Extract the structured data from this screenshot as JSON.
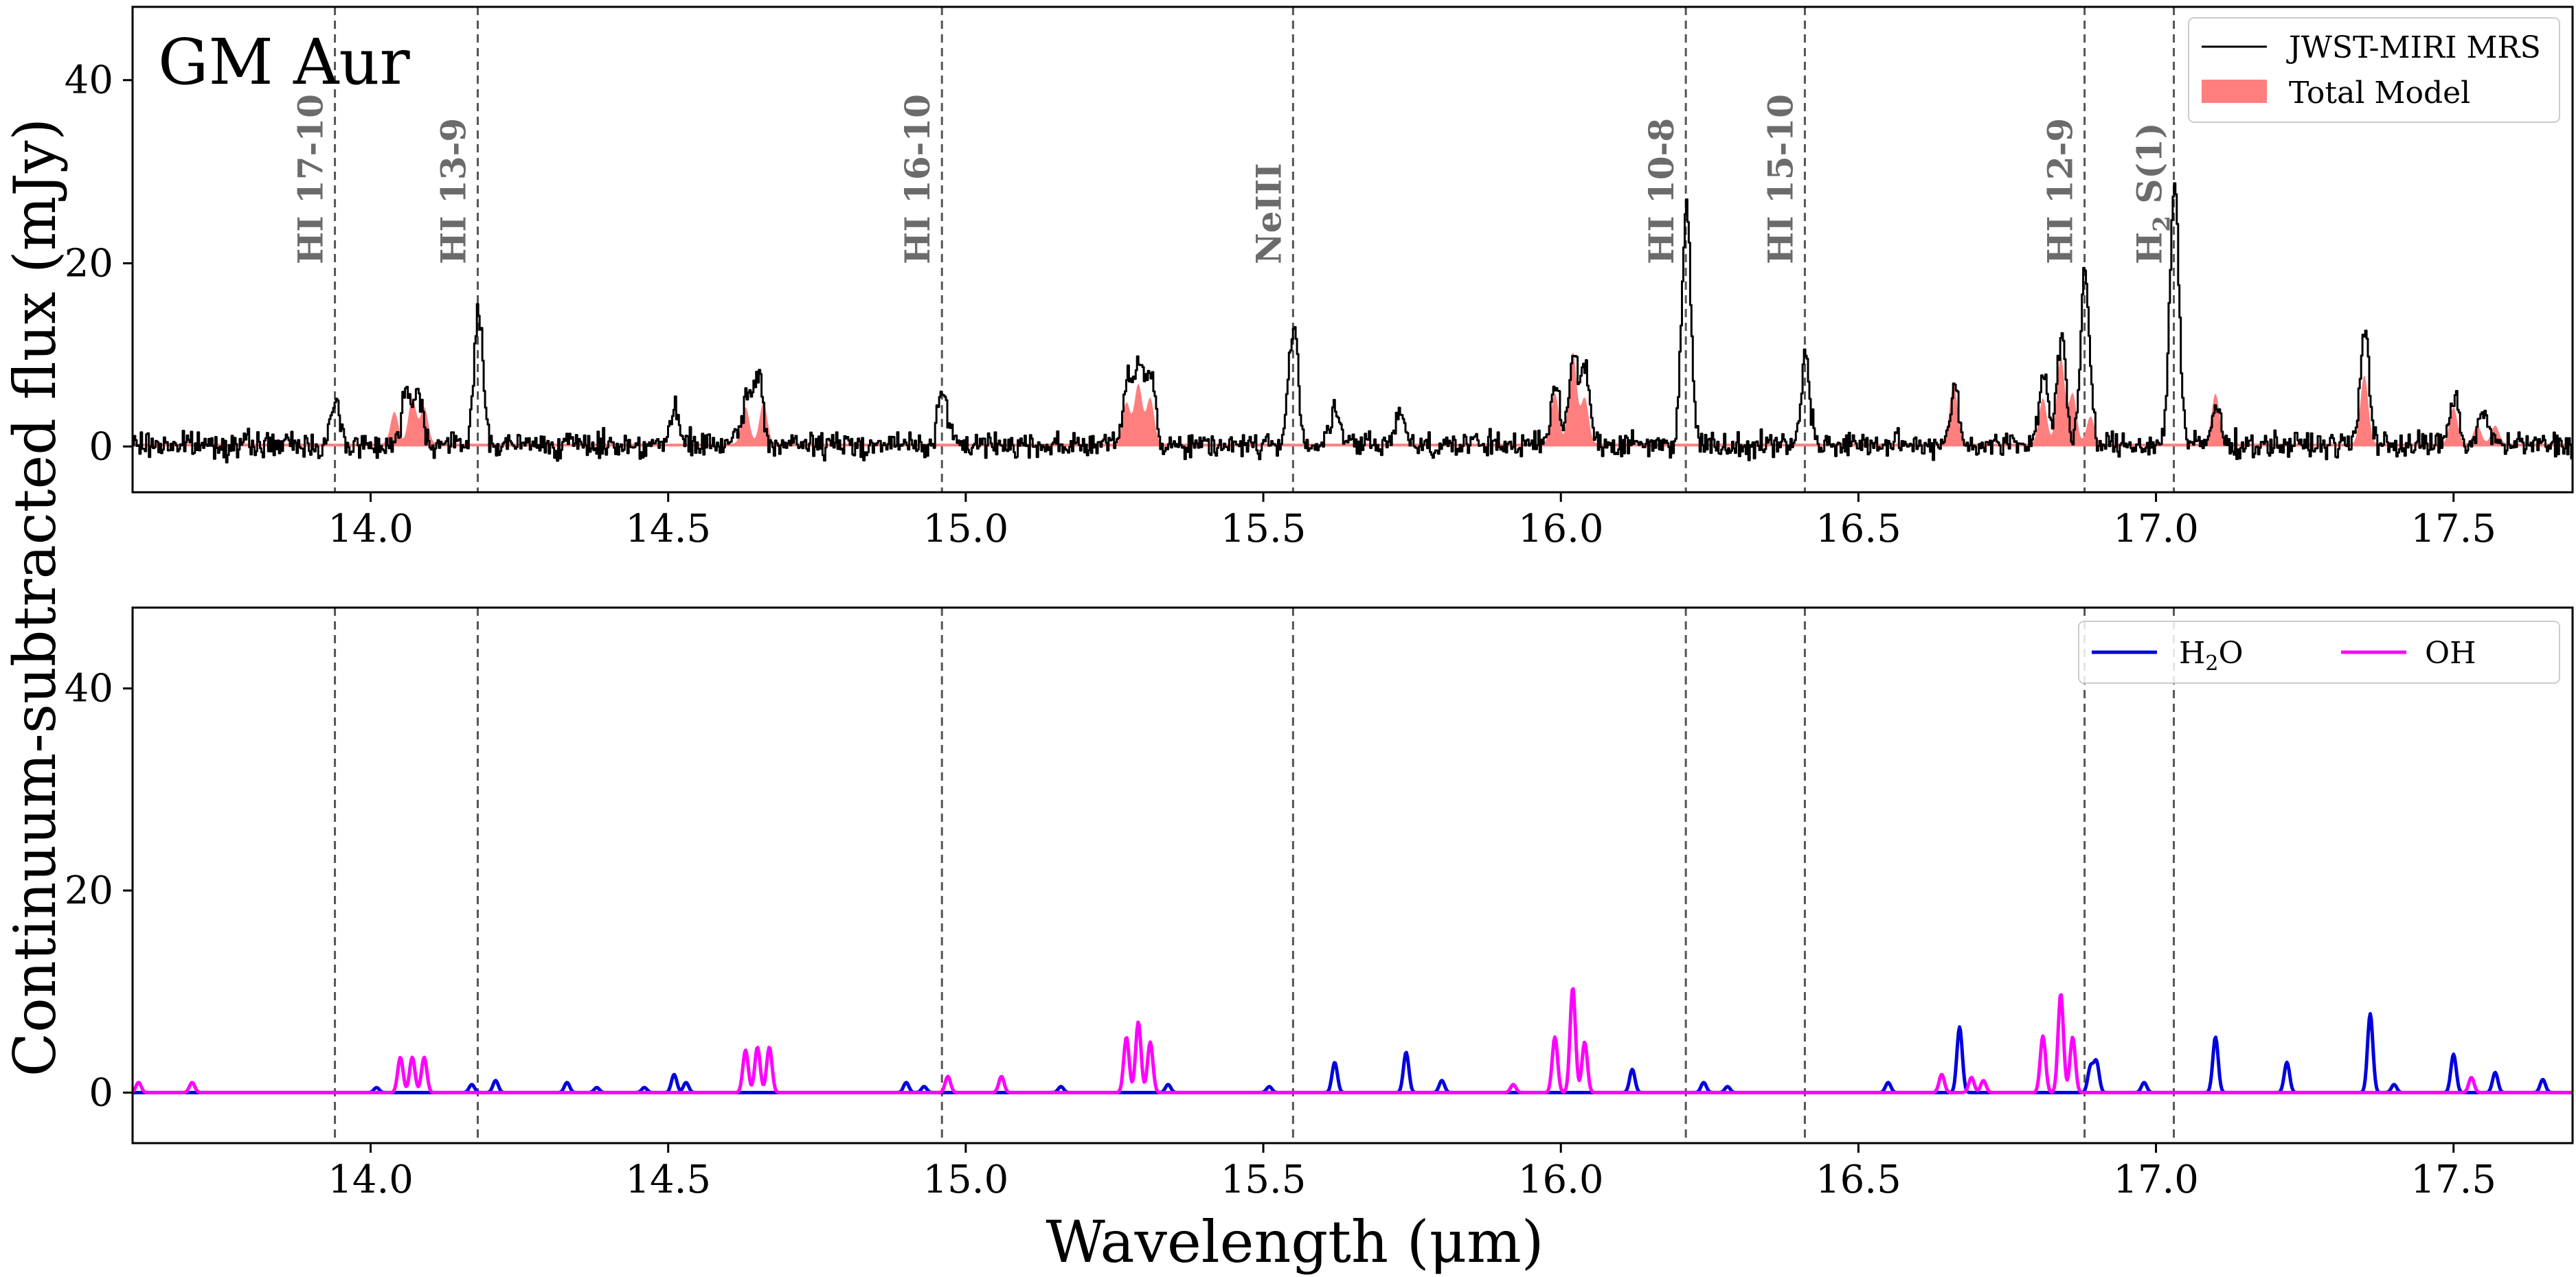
{
  "figure": {
    "ylabel": "Continuum-subtracted flux (mJy)",
    "xlabel": "Wavelength (μm)"
  },
  "chart_data": [
    {
      "type": "line",
      "panel": "top",
      "title": "GM Aur",
      "xlim": [
        13.6,
        17.7
      ],
      "ylim": [
        -5,
        48
      ],
      "xticks": [
        "14.0",
        "14.5",
        "15.0",
        "15.5",
        "16.0",
        "16.5",
        "17.0",
        "17.5"
      ],
      "xtick_values": [
        14.0,
        14.5,
        15.0,
        15.5,
        16.0,
        16.5,
        17.0,
        17.5
      ],
      "yticks": [
        "0",
        "20",
        "40"
      ],
      "ytick_values": [
        0,
        20,
        40
      ],
      "legend": [
        "JWST-MIRI MRS",
        "Total Model"
      ],
      "legend_location": "top-right",
      "lines": [
        {
          "label": "HI 17-10",
          "x": 13.94
        },
        {
          "label": "HI 13-9",
          "x": 14.18
        },
        {
          "label": "HI 16-10",
          "x": 14.96
        },
        {
          "label": "NeIII",
          "x": 15.55
        },
        {
          "label": "HI 10-8",
          "x": 16.21
        },
        {
          "label": "HI 15-10",
          "x": 16.41
        },
        {
          "label": "HI 12-9",
          "x": 16.88
        },
        {
          "label": "H2 S(1)",
          "label_main": "H",
          "label_sub": "2",
          "label_rest": " S(1)",
          "x": 17.03
        }
      ],
      "series": [
        {
          "name": "JWST-MIRI MRS",
          "color": "#000000",
          "noise": 1.2,
          "peaks": [
            [
              13.94,
              4.5
            ],
            [
              14.06,
              6.5
            ],
            [
              14.08,
              5.5
            ],
            [
              14.18,
              14.5
            ],
            [
              14.51,
              3.5
            ],
            [
              14.63,
              5.0
            ],
            [
              14.65,
              8.0
            ],
            [
              14.96,
              6.0
            ],
            [
              15.27,
              6.5
            ],
            [
              15.29,
              9.0
            ],
            [
              15.31,
              8.0
            ],
            [
              15.55,
              13.5
            ],
            [
              15.62,
              4.0
            ],
            [
              15.73,
              4.0
            ],
            [
              15.99,
              6.5
            ],
            [
              16.02,
              10.0
            ],
            [
              16.04,
              8.5
            ],
            [
              16.21,
              26.5
            ],
            [
              16.41,
              9.5
            ],
            [
              16.66,
              6.0
            ],
            [
              16.81,
              8.0
            ],
            [
              16.84,
              12.0
            ],
            [
              16.88,
              18.5
            ],
            [
              17.03,
              29.0
            ],
            [
              17.1,
              4.0
            ],
            [
              17.35,
              12.5
            ],
            [
              17.5,
              5.0
            ],
            [
              17.55,
              4.0
            ]
          ]
        },
        {
          "name": "Total Model",
          "color": "#ff7f7f",
          "baseline": 0.3,
          "peaks": [
            [
              14.04,
              3.5
            ],
            [
              14.07,
              5.0
            ],
            [
              14.09,
              4.0
            ],
            [
              14.63,
              4.0
            ],
            [
              14.66,
              4.5
            ],
            [
              15.27,
              4.5
            ],
            [
              15.29,
              6.5
            ],
            [
              15.31,
              5.0
            ],
            [
              15.99,
              5.5
            ],
            [
              16.02,
              10.0
            ],
            [
              16.04,
              5.0
            ],
            [
              16.66,
              6.5
            ],
            [
              16.81,
              5.0
            ],
            [
              16.84,
              9.5
            ],
            [
              16.86,
              5.5
            ],
            [
              16.89,
              3.0
            ],
            [
              17.1,
              5.5
            ],
            [
              17.35,
              7.5
            ],
            [
              17.5,
              4.0
            ],
            [
              17.54,
              2.0
            ],
            [
              17.57,
              2.0
            ]
          ]
        }
      ]
    },
    {
      "type": "line",
      "panel": "bottom",
      "xlim": [
        13.6,
        17.7
      ],
      "ylim": [
        -5,
        48
      ],
      "xticks": [
        "14.0",
        "14.5",
        "15.0",
        "15.5",
        "16.0",
        "16.5",
        "17.0",
        "17.5"
      ],
      "xtick_values": [
        14.0,
        14.5,
        15.0,
        15.5,
        16.0,
        16.5,
        17.0,
        17.5
      ],
      "yticks": [
        "0",
        "20",
        "40"
      ],
      "ytick_values": [
        0,
        20,
        40
      ],
      "legend": [
        "H2O",
        "OH"
      ],
      "legend_location": "top-right",
      "series": [
        {
          "name": "H2O",
          "label_main": "H",
          "label_sub": "2",
          "label_rest": "O",
          "color": "#0000dd",
          "peaks": [
            [
              14.01,
              0.5
            ],
            [
              14.17,
              0.8
            ],
            [
              14.21,
              1.2
            ],
            [
              14.33,
              1.0
            ],
            [
              14.38,
              0.5
            ],
            [
              14.46,
              0.5
            ],
            [
              14.51,
              1.8
            ],
            [
              14.53,
              1.0
            ],
            [
              14.9,
              1.0
            ],
            [
              14.93,
              0.6
            ],
            [
              15.16,
              0.6
            ],
            [
              15.34,
              0.8
            ],
            [
              15.51,
              0.6
            ],
            [
              15.62,
              3.0
            ],
            [
              15.74,
              4.0
            ],
            [
              15.8,
              1.2
            ],
            [
              16.12,
              2.3
            ],
            [
              16.24,
              1.0
            ],
            [
              16.28,
              0.6
            ],
            [
              16.55,
              1.0
            ],
            [
              16.67,
              6.5
            ],
            [
              16.89,
              2.5
            ],
            [
              16.9,
              3.0
            ],
            [
              16.98,
              1.0
            ],
            [
              17.1,
              5.5
            ],
            [
              17.22,
              3.0
            ],
            [
              17.36,
              7.8
            ],
            [
              17.4,
              0.8
            ],
            [
              17.5,
              3.8
            ],
            [
              17.57,
              2.0
            ],
            [
              17.65,
              1.3
            ]
          ]
        },
        {
          "name": "OH",
          "color": "#ff00ff",
          "peaks": [
            [
              13.61,
              1.0
            ],
            [
              13.7,
              1.0
            ],
            [
              14.05,
              3.5
            ],
            [
              14.07,
              3.5
            ],
            [
              14.09,
              3.5
            ],
            [
              14.63,
              4.2
            ],
            [
              14.65,
              4.5
            ],
            [
              14.67,
              4.5
            ],
            [
              14.97,
              1.6
            ],
            [
              15.06,
              1.6
            ],
            [
              15.27,
              5.5
            ],
            [
              15.29,
              7.0
            ],
            [
              15.31,
              5.0
            ],
            [
              15.92,
              0.8
            ],
            [
              15.99,
              5.5
            ],
            [
              16.02,
              10.4
            ],
            [
              16.04,
              5.0
            ],
            [
              16.64,
              1.8
            ],
            [
              16.69,
              1.5
            ],
            [
              16.71,
              1.2
            ],
            [
              16.81,
              5.6
            ],
            [
              16.84,
              9.8
            ],
            [
              16.86,
              5.5
            ],
            [
              17.53,
              1.5
            ]
          ]
        }
      ]
    }
  ]
}
